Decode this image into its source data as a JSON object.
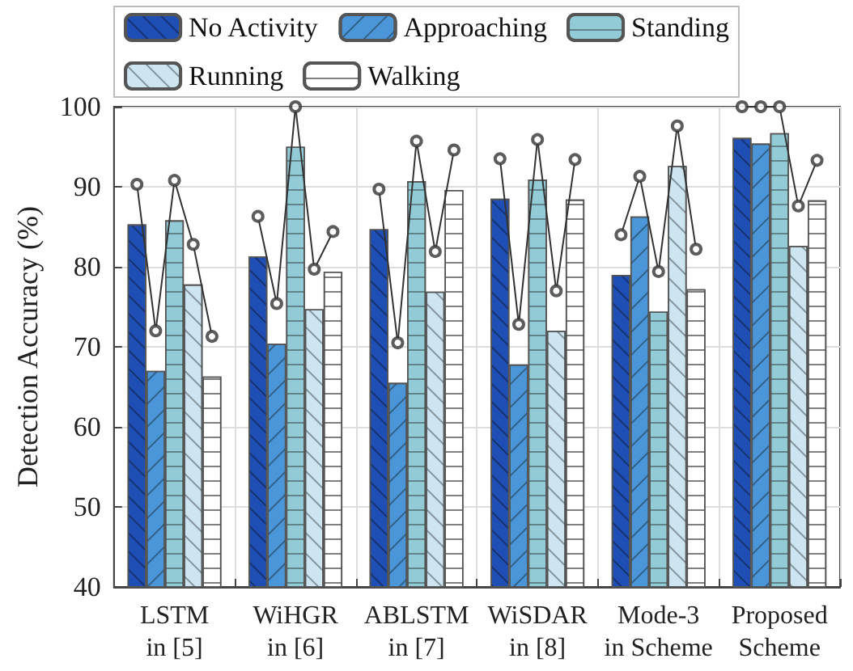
{
  "chart_data": {
    "type": "bar",
    "ylabel": "Detection Accuracy (%)",
    "categories": [
      "LSTM\nin [5]",
      "WiHGR\nin [6]",
      "ABLSTM\nin [7]",
      "WiSDAR\nin [8]",
      "Mode-3\nin Scheme",
      "Proposed\nScheme"
    ],
    "series": [
      {
        "name": "No Activity",
        "color": "#1f4fb4",
        "values": [
          85.3,
          81.3,
          84.7,
          88.5,
          79.0,
          96.1
        ]
      },
      {
        "name": "Approaching",
        "color": "#4a96d8",
        "values": [
          67.0,
          70.4,
          65.5,
          67.8,
          86.3,
          95.4
        ]
      },
      {
        "name": "Standing",
        "color": "#92cbd6",
        "values": [
          85.8,
          95.0,
          90.7,
          90.9,
          74.4,
          96.7
        ]
      },
      {
        "name": "Running",
        "color": "#cde5f1",
        "values": [
          77.8,
          74.7,
          76.9,
          72.0,
          92.6,
          82.6
        ]
      },
      {
        "name": "Walking",
        "color": "#ffffff",
        "values": [
          66.3,
          79.4,
          89.6,
          88.4,
          77.2,
          88.3
        ]
      },
      {
        "type": "scatter",
        "color": "#333333",
        "values": [
          90.3,
          86.3,
          89.7,
          93.5,
          84.0,
          100
        ]
      },
      {
        "type": "scatter",
        "color": "#333333",
        "values": [
          72.0,
          75.4,
          70.5,
          72.8,
          91.3,
          100
        ]
      },
      {
        "type": "scatter",
        "color": "#333333",
        "values": [
          90.8,
          100,
          95.7,
          95.9,
          79.4,
          100
        ]
      },
      {
        "type": "scatter",
        "color": "#333333",
        "values": [
          82.8,
          79.7,
          81.9,
          77.0,
          97.6,
          87.6
        ]
      },
      {
        "type": "scatter",
        "color": "#333333",
        "values": [
          71.3,
          84.4,
          94.6,
          93.4,
          82.2,
          93.3
        ]
      }
    ],
    "ylim": [
      40,
      100
    ],
    "yticks": [
      40,
      50,
      60,
      70,
      80,
      90,
      100
    ],
    "grid": true,
    "legend": "top",
    "marker": "circle"
  }
}
